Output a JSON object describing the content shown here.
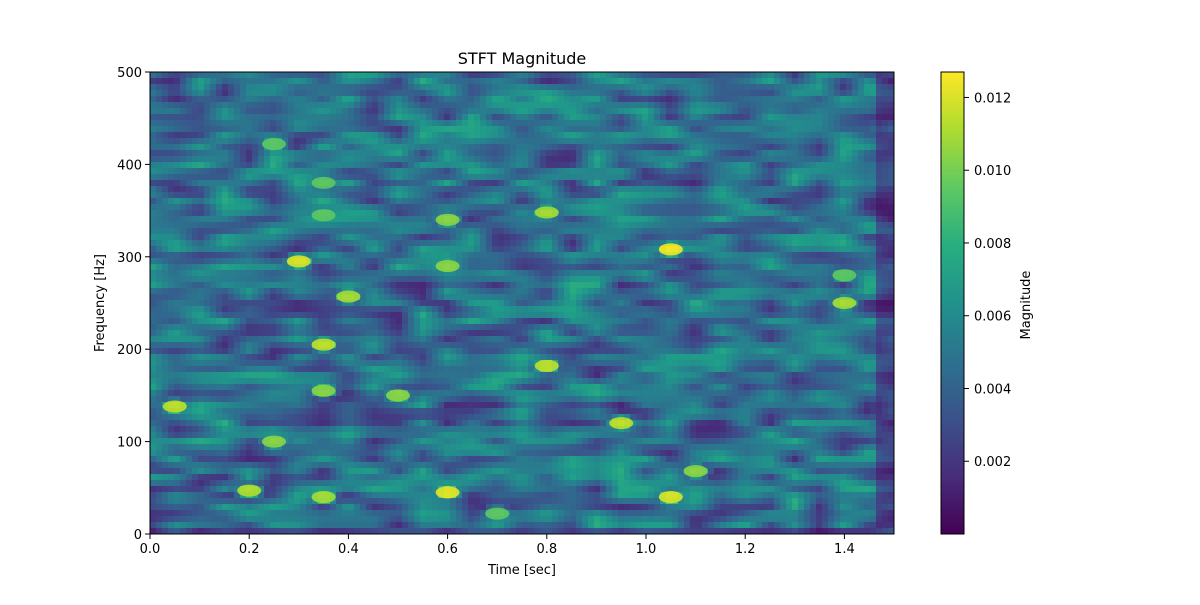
{
  "chart_data": {
    "type": "heatmap",
    "title": "STFT Magnitude",
    "xlabel": "Time [sec]",
    "ylabel": "Frequency [Hz]",
    "xlim": [
      0.0,
      1.5
    ],
    "ylim": [
      0,
      500
    ],
    "x_ticks": [
      "0.0",
      "0.2",
      "0.4",
      "0.6",
      "0.8",
      "1.0",
      "1.2",
      "1.4"
    ],
    "y_ticks": [
      "0",
      "100",
      "200",
      "300",
      "400",
      "500"
    ],
    "colorbar": {
      "label": "Magnitude",
      "colormap": "viridis",
      "range": [
        0.0,
        0.0127
      ],
      "ticks": [
        "0.002",
        "0.004",
        "0.006",
        "0.008",
        "0.010",
        "0.012"
      ]
    },
    "hot_spots": [
      {
        "time": 0.05,
        "freq": 138,
        "magnitude": 0.0115
      },
      {
        "time": 0.2,
        "freq": 47,
        "magnitude": 0.0112
      },
      {
        "time": 0.25,
        "freq": 100,
        "magnitude": 0.0105
      },
      {
        "time": 0.25,
        "freq": 422,
        "magnitude": 0.0095
      },
      {
        "time": 0.3,
        "freq": 295,
        "magnitude": 0.012
      },
      {
        "time": 0.35,
        "freq": 40,
        "magnitude": 0.011
      },
      {
        "time": 0.35,
        "freq": 155,
        "magnitude": 0.0105
      },
      {
        "time": 0.35,
        "freq": 205,
        "magnitude": 0.0115
      },
      {
        "time": 0.35,
        "freq": 345,
        "magnitude": 0.0095
      },
      {
        "time": 0.35,
        "freq": 380,
        "magnitude": 0.0095
      },
      {
        "time": 0.4,
        "freq": 257,
        "magnitude": 0.011
      },
      {
        "time": 0.5,
        "freq": 150,
        "magnitude": 0.0105
      },
      {
        "time": 0.6,
        "freq": 45,
        "magnitude": 0.0122
      },
      {
        "time": 0.6,
        "freq": 290,
        "magnitude": 0.0105
      },
      {
        "time": 0.6,
        "freq": 340,
        "magnitude": 0.0105
      },
      {
        "time": 0.7,
        "freq": 22,
        "magnitude": 0.0095
      },
      {
        "time": 0.8,
        "freq": 182,
        "magnitude": 0.0115
      },
      {
        "time": 0.8,
        "freq": 348,
        "magnitude": 0.011
      },
      {
        "time": 0.95,
        "freq": 120,
        "magnitude": 0.0115
      },
      {
        "time": 1.05,
        "freq": 40,
        "magnitude": 0.012
      },
      {
        "time": 1.05,
        "freq": 308,
        "magnitude": 0.0125
      },
      {
        "time": 1.1,
        "freq": 68,
        "magnitude": 0.0105
      },
      {
        "time": 1.4,
        "freq": 250,
        "magnitude": 0.011
      },
      {
        "time": 1.4,
        "freq": 280,
        "magnitude": 0.0095
      }
    ]
  }
}
